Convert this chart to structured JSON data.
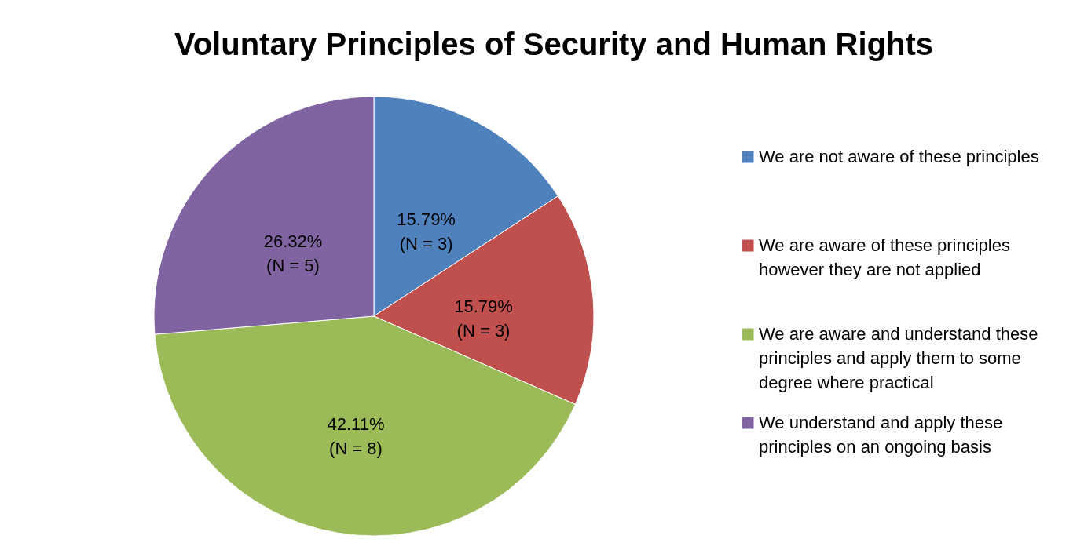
{
  "chart_data": {
    "type": "pie",
    "title": "Voluntary Principles of Security and Human Rights",
    "categories": [
      "We are not aware of these principles",
      "We are aware of these principles however they are not applied",
      "We are aware and understand these principles and apply them to some degree where practical",
      "We understand and apply these principles on an ongoing basis"
    ],
    "values": [
      15.79,
      15.79,
      42.11,
      26.32
    ],
    "colors": [
      "#4f81bd",
      "#c0504d",
      "#9bbb59",
      "#8064a2"
    ],
    "value_labels": [
      "15.79%\n(N = 3)",
      "15.79%\n(N = 3)",
      "42.11%\n(N = 8)",
      "26.32%\n(N = 5)"
    ],
    "legend": "right"
  }
}
